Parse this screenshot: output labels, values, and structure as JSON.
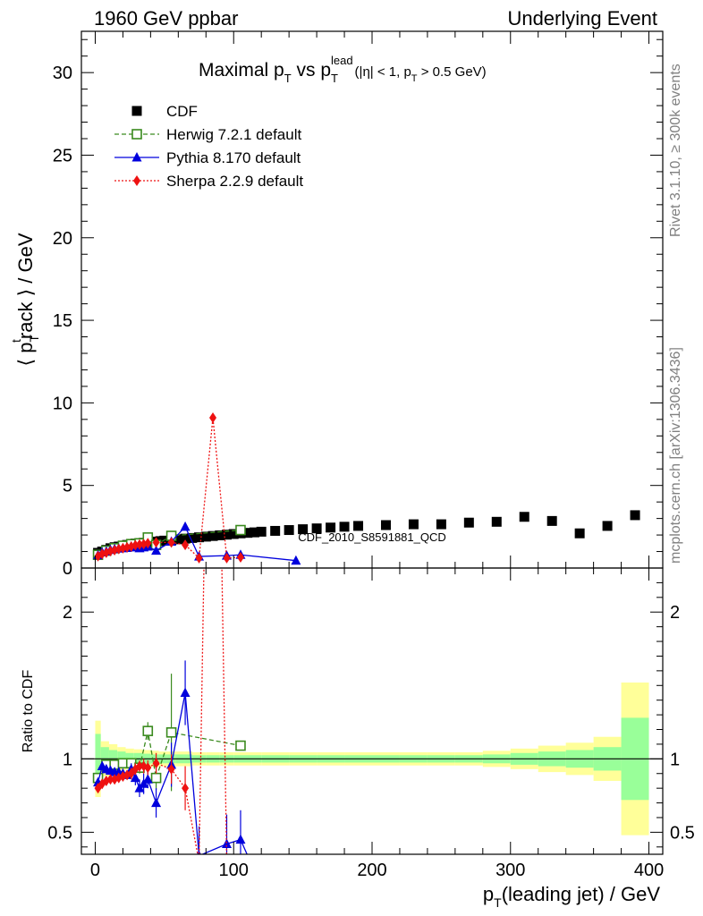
{
  "header": {
    "left": "1960 GeV ppbar",
    "right": "Underlying Event"
  },
  "side_labels": {
    "rivet": "Rivet 3.1.10, ≥ 300k events",
    "mcplots": "mcplots.cern.ch [arXiv:1306.3436]"
  },
  "chart_data": [
    {
      "type": "scatter",
      "title": "Maximal pT vs pT lead (|η| < 1, pT > 0.5 GeV)",
      "title_parts": {
        "main": "Maximal p",
        "sub1": "T",
        "vs": " vs p",
        "sub2": "T",
        "sup2": "lead",
        "cut": "(|η| < 1, p",
        "sub3": "T",
        "cut_end": " > 0.5 GeV)"
      },
      "ylabel": "⟨ ptrack ⟩ / GeV",
      "xlabel": "",
      "watermark": "CDF_2010_S8591881_QCD",
      "xlim": [
        -10,
        410
      ],
      "ylim": [
        0,
        32.5
      ],
      "yticks": [
        0,
        5,
        10,
        15,
        20,
        25,
        30
      ],
      "series": [
        {
          "name": "CDF",
          "color": "#000000",
          "marker": "square-filled",
          "x": [
            2,
            5,
            8,
            11,
            14,
            17,
            20,
            23,
            26,
            29,
            32,
            35,
            38,
            41,
            44,
            47,
            50,
            55,
            60,
            65,
            70,
            75,
            80,
            85,
            90,
            95,
            100,
            105,
            110,
            115,
            120,
            130,
            140,
            150,
            160,
            170,
            180,
            190,
            210,
            230,
            250,
            270,
            290,
            310,
            330,
            350,
            370,
            390
          ],
          "y": [
            0.92,
            1.0,
            1.1,
            1.2,
            1.26,
            1.3,
            1.35,
            1.4,
            1.44,
            1.48,
            1.5,
            1.53,
            1.55,
            1.58,
            1.6,
            1.63,
            1.66,
            1.7,
            1.74,
            1.78,
            1.82,
            1.86,
            1.9,
            1.94,
            1.98,
            2.02,
            2.06,
            2.1,
            2.13,
            2.16,
            2.2,
            2.25,
            2.3,
            2.35,
            2.4,
            2.45,
            2.5,
            2.55,
            2.6,
            2.65,
            2.65,
            2.75,
            2.8,
            3.1,
            2.85,
            2.1,
            2.55,
            3.2
          ]
        },
        {
          "name": "Herwig 7.2.1 default",
          "color": "#3a8a1e",
          "marker": "square-open",
          "line": "dashed",
          "x": [
            2,
            8,
            14,
            20,
            26,
            32,
            38,
            44,
            55,
            105
          ],
          "y": [
            0.8,
            1.05,
            1.2,
            1.35,
            1.45,
            1.5,
            1.85,
            1.4,
            1.95,
            2.3
          ]
        },
        {
          "name": "Pythia 8.170 default",
          "color": "#0000dd",
          "marker": "triangle-filled",
          "line": "solid",
          "x": [
            2,
            5,
            8,
            11,
            14,
            17,
            20,
            23,
            26,
            29,
            32,
            35,
            38,
            44,
            55,
            65,
            75,
            95,
            105,
            145
          ],
          "y": [
            0.78,
            0.95,
            1.0,
            1.1,
            1.15,
            1.18,
            1.2,
            1.22,
            1.3,
            1.25,
            1.2,
            1.25,
            1.3,
            1.05,
            1.6,
            2.5,
            0.7,
            0.75,
            0.8,
            0.45
          ]
        },
        {
          "name": "Sherpa 2.2.9 default",
          "color": "#ee1111",
          "marker": "diamond-filled",
          "line": "dotted",
          "x": [
            2,
            5,
            8,
            11,
            14,
            17,
            20,
            23,
            26,
            29,
            32,
            35,
            38,
            44,
            55,
            65,
            75,
            85,
            95,
            105
          ],
          "y": [
            0.72,
            0.85,
            0.93,
            1.02,
            1.08,
            1.15,
            1.2,
            1.25,
            1.3,
            1.38,
            1.42,
            1.45,
            1.5,
            1.55,
            1.55,
            1.4,
            0.6,
            9.1,
            0.6,
            0.65
          ]
        }
      ]
    },
    {
      "type": "scatter",
      "title": "",
      "ylabel": "Ratio to CDF",
      "xlabel": "pT(leading jet) / GeV",
      "xlim": [
        -10,
        410
      ],
      "ylim": [
        0.35,
        2.3
      ],
      "yticks": [
        0.5,
        1,
        2
      ],
      "xticks": [
        0,
        100,
        200,
        300,
        400
      ],
      "bands": {
        "x_edges": [
          0,
          4,
          10,
          16,
          22,
          28,
          34,
          40,
          46,
          52,
          58,
          64,
          70,
          80,
          90,
          100,
          120,
          140,
          160,
          180,
          200,
          220,
          240,
          260,
          280,
          300,
          320,
          340,
          360,
          380,
          400
        ],
        "green_half_width": [
          0.17,
          0.08,
          0.06,
          0.05,
          0.04,
          0.04,
          0.035,
          0.03,
          0.03,
          0.03,
          0.03,
          0.03,
          0.025,
          0.025,
          0.025,
          0.025,
          0.025,
          0.025,
          0.025,
          0.025,
          0.025,
          0.025,
          0.025,
          0.025,
          0.03,
          0.04,
          0.05,
          0.06,
          0.08,
          0.28
        ],
        "yellow_half_width": [
          0.26,
          0.12,
          0.1,
          0.08,
          0.07,
          0.065,
          0.06,
          0.055,
          0.05,
          0.05,
          0.05,
          0.05,
          0.045,
          0.045,
          0.045,
          0.045,
          0.045,
          0.045,
          0.045,
          0.045,
          0.045,
          0.045,
          0.045,
          0.045,
          0.055,
          0.07,
          0.09,
          0.11,
          0.15,
          0.52
        ]
      },
      "series": [
        {
          "name": "Herwig 7.2.1 default",
          "color": "#3a8a1e",
          "marker": "square-open",
          "line": "dashed",
          "x": [
            2,
            8,
            14,
            20,
            26,
            32,
            38,
            44,
            55,
            105
          ],
          "y": [
            0.87,
            0.96,
            0.96,
            0.97,
            0.97,
            0.94,
            1.19,
            0.87,
            1.18,
            1.09
          ],
          "err": [
            0.03,
            0.03,
            0.03,
            0.03,
            0.03,
            0.04,
            0.06,
            0.08,
            0.4,
            0.03
          ]
        },
        {
          "name": "Pythia 8.170 default",
          "color": "#0000dd",
          "marker": "triangle-filled",
          "line": "solid",
          "x": [
            2,
            5,
            8,
            11,
            14,
            17,
            20,
            23,
            26,
            29,
            32,
            35,
            38,
            44,
            55,
            65,
            75,
            95,
            105
          ],
          "y": [
            0.84,
            0.95,
            0.93,
            0.92,
            0.91,
            0.91,
            0.9,
            0.89,
            0.93,
            0.87,
            0.8,
            0.83,
            0.86,
            0.7,
            0.96,
            1.45,
            0.34,
            0.42,
            0.45
          ],
          "err": [
            0.03,
            0.03,
            0.03,
            0.03,
            0.03,
            0.03,
            0.03,
            0.03,
            0.04,
            0.05,
            0.06,
            0.07,
            0.06,
            0.1,
            0.15,
            0.22,
            0.2,
            0.2,
            0.2
          ]
        },
        {
          "name": "Sherpa 2.2.9 default",
          "color": "#ee1111",
          "marker": "diamond-filled",
          "line": "dotted",
          "x": [
            2,
            5,
            8,
            11,
            14,
            17,
            20,
            23,
            26,
            29,
            32,
            35,
            38,
            44,
            55,
            65
          ],
          "y": [
            0.8,
            0.83,
            0.85,
            0.86,
            0.86,
            0.87,
            0.88,
            0.89,
            0.9,
            0.93,
            0.95,
            0.95,
            0.94,
            0.97,
            0.93,
            0.8
          ],
          "err": [
            0.03,
            0.03,
            0.03,
            0.03,
            0.03,
            0.03,
            0.03,
            0.03,
            0.04,
            0.04,
            0.04,
            0.05,
            0.05,
            0.07,
            0.1,
            0.15
          ]
        }
      ]
    }
  ]
}
